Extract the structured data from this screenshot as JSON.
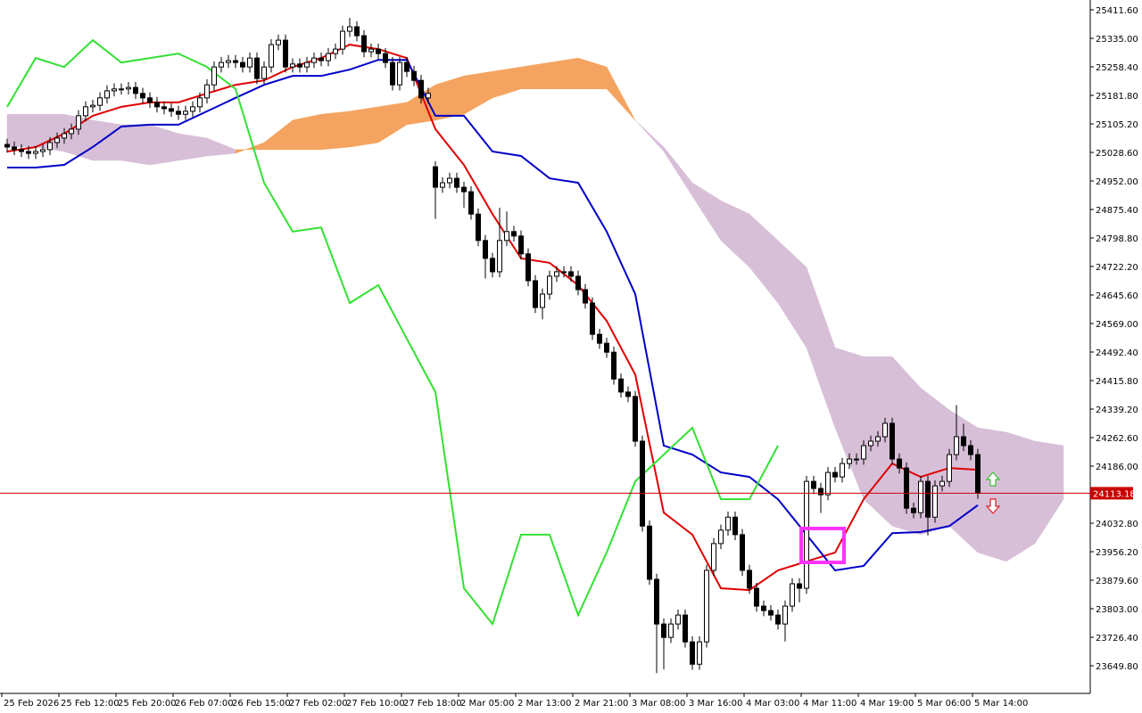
{
  "chart_data": {
    "type": "candlestick",
    "categories": [
      "25 Feb 2026",
      null,
      null,
      null,
      null,
      null,
      null,
      null,
      "25 Feb 12:00",
      null,
      null,
      null,
      null,
      null,
      null,
      null,
      "25 Feb 20:00",
      null,
      null,
      null,
      null,
      null,
      null,
      null,
      "26 Feb 07:00",
      null,
      null,
      null,
      null,
      null,
      null,
      null,
      "26 Feb 15:00",
      null,
      null,
      null,
      null,
      null,
      null,
      null,
      "27 Feb 02:00",
      null,
      null,
      null,
      null,
      null,
      null,
      null,
      "27 Feb 10:00",
      null,
      null,
      null,
      null,
      null,
      null,
      null,
      "27 Feb 18:00",
      null,
      null,
      null,
      null,
      null,
      null,
      null,
      "2 Mar 05:00",
      null,
      null,
      null,
      null,
      null,
      null,
      null,
      "2 Mar 13:00",
      null,
      null,
      null,
      null,
      null,
      null,
      null,
      "2 Mar 21:00",
      null,
      null,
      null,
      null,
      null,
      null,
      null,
      "3 Mar 08:00",
      null,
      null,
      null,
      null,
      null,
      null,
      null,
      "3 Mar 16:00",
      null,
      null,
      null,
      null,
      null,
      null,
      null,
      "4 Mar 03:00",
      null,
      null,
      null,
      null,
      null,
      null,
      null,
      "4 Mar 11:00",
      null,
      null,
      null,
      null,
      null,
      null,
      null,
      "4 Mar 19:00",
      null,
      null,
      null,
      null,
      null,
      null,
      null,
      "5 Mar 06:00",
      null,
      null,
      null,
      null,
      null,
      null,
      null,
      "5 Mar 14:00"
    ],
    "open": [
      25050,
      25043,
      25036,
      25031,
      25026,
      25031,
      25036,
      25055,
      25067,
      25079,
      25091,
      25127,
      25151,
      25155,
      25175,
      25194,
      25199,
      25199,
      25203,
      25187,
      25175,
      25163,
      25151,
      25146,
      25139,
      25131,
      25139,
      25151,
      25175,
      25210,
      25258,
      25270,
      25275,
      25270,
      25258,
      25282,
      25227,
      25258,
      25318,
      25330,
      25258,
      25266,
      25258,
      25270,
      25282,
      25275,
      25294,
      25306,
      25354,
      25366,
      25342,
      25299,
      25306,
      25294,
      25270,
      25210,
      25270,
      25246,
      25222,
      25175,
      24990,
      24935,
      24947,
      24959,
      24935,
      24923,
      24863,
      24792,
      24744,
      24708,
      24792,
      24816,
      24804,
      24756,
      24684,
      24612,
      24648,
      24696,
      24708,
      24708,
      24696,
      24660,
      24624,
      24540,
      24516,
      24492,
      24420,
      24385,
      24373,
      24253,
      24025,
      23882,
      23762,
      23726,
      23762,
      23786,
      23714,
      23654,
      23714,
      23906,
      23978,
      24014,
      24049,
      24002,
      23906,
      23858,
      23810,
      23798,
      23786,
      23762,
      23810,
      23870,
      23858,
      24145,
      24126,
      24109,
      24169,
      24157,
      24193,
      24205,
      24205,
      24241,
      24253,
      24265,
      24301,
      24205,
      24181,
      24073,
      24061,
      24145,
      24049,
      24133,
      24145,
      24217,
      24265,
      24241,
      24217
    ],
    "high": [
      25065,
      25058,
      25051,
      25046,
      25046,
      25051,
      25070,
      25082,
      25094,
      25106,
      25142,
      25166,
      25170,
      25190,
      25209,
      25214,
      25214,
      25218,
      25218,
      25202,
      25190,
      25178,
      25166,
      25161,
      25154,
      25154,
      25166,
      25190,
      25225,
      25273,
      25285,
      25290,
      25290,
      25285,
      25297,
      25297,
      25273,
      25333,
      25345,
      25345,
      25281,
      25281,
      25285,
      25297,
      25297,
      25309,
      25321,
      25369,
      25390,
      25381,
      25357,
      25321,
      25321,
      25309,
      25285,
      25285,
      25285,
      25261,
      25237,
      25202,
      25005,
      24962,
      24974,
      24974,
      24950,
      24938,
      24878,
      24807,
      24759,
      24880,
      24870,
      24831,
      24819,
      24771,
      24699,
      24663,
      24711,
      24723,
      24723,
      24723,
      24711,
      24675,
      24639,
      24555,
      24531,
      24507,
      24435,
      24400,
      24388,
      24268,
      24040,
      23897,
      23777,
      23777,
      23801,
      23801,
      23729,
      23729,
      23921,
      23993,
      24029,
      24064,
      24064,
      24017,
      23921,
      23873,
      23825,
      23813,
      23801,
      23825,
      23885,
      23885,
      24160,
      24160,
      24141,
      24184,
      24184,
      24208,
      24220,
      24220,
      24256,
      24268,
      24280,
      24316,
      24316,
      24220,
      24196,
      24088,
      24160,
      24160,
      24148,
      24160,
      24232,
      24350,
      24300,
      24256,
      24232
    ],
    "low": [
      25028,
      25021,
      25016,
      25011,
      25011,
      25016,
      25021,
      25040,
      25052,
      25064,
      25076,
      25112,
      25136,
      25140,
      25160,
      25179,
      25184,
      25184,
      25172,
      25160,
      25148,
      25136,
      25131,
      25124,
      25116,
      25116,
      25124,
      25136,
      25160,
      25195,
      25243,
      25255,
      25255,
      25243,
      25243,
      25212,
      25212,
      25243,
      25303,
      25243,
      25243,
      25243,
      25243,
      25255,
      25260,
      25260,
      25279,
      25291,
      25339,
      25327,
      25284,
      25284,
      25279,
      25255,
      25195,
      25195,
      25231,
      25207,
      25160,
      25160,
      24850,
      24920,
      24932,
      24920,
      24880,
      24848,
      24777,
      24690,
      24693,
      24693,
      24777,
      24789,
      24741,
      24669,
      24597,
      24580,
      24633,
      24681,
      24693,
      24681,
      24645,
      24609,
      24525,
      24501,
      24477,
      24405,
      24370,
      24358,
      24238,
      24010,
      23867,
      23630,
      23640,
      23711,
      23747,
      23699,
      23639,
      23639,
      23699,
      23891,
      23963,
      23999,
      23987,
      23891,
      23843,
      23795,
      23783,
      23771,
      23747,
      23715,
      23795,
      23820,
      23843,
      24111,
      24060,
      24094,
      24142,
      24142,
      24178,
      24190,
      24190,
      24226,
      24238,
      24250,
      24190,
      24166,
      24058,
      24046,
      24046,
      24000,
      24034,
      24118,
      24130,
      24202,
      24226,
      24202,
      24098
    ],
    "close": [
      25043,
      25036,
      25031,
      25026,
      25031,
      25036,
      25055,
      25067,
      25079,
      25091,
      25127,
      25151,
      25155,
      25175,
      25194,
      25199,
      25199,
      25203,
      25187,
      25175,
      25163,
      25151,
      25146,
      25139,
      25131,
      25139,
      25151,
      25175,
      25210,
      25258,
      25270,
      25275,
      25270,
      25258,
      25282,
      25227,
      25258,
      25318,
      25330,
      25258,
      25266,
      25258,
      25270,
      25282,
      25275,
      25294,
      25306,
      25354,
      25366,
      25342,
      25299,
      25306,
      25294,
      25270,
      25210,
      25270,
      25246,
      25222,
      25175,
      25187,
      24935,
      24947,
      24959,
      24935,
      24923,
      24863,
      24792,
      24744,
      24708,
      24792,
      24816,
      24804,
      24756,
      24684,
      24612,
      24648,
      24696,
      24708,
      24708,
      24696,
      24660,
      24624,
      24540,
      24516,
      24492,
      24420,
      24385,
      24373,
      24253,
      24025,
      23882,
      23762,
      23726,
      23762,
      23786,
      23714,
      23654,
      23714,
      23906,
      23978,
      24014,
      24049,
      24002,
      23906,
      23858,
      23810,
      23798,
      23786,
      23762,
      23810,
      23870,
      23858,
      24145,
      24126,
      24109,
      24169,
      24157,
      24193,
      24205,
      24205,
      24241,
      24253,
      24265,
      24301,
      24205,
      24181,
      24073,
      24061,
      24145,
      24049,
      24133,
      24145,
      24217,
      24265,
      24241,
      24217,
      24113
    ],
    "up_color": "#ffffff",
    "down_color": "#000000",
    "lines": [
      {
        "color": "#e00000",
        "values": [
          25031,
          25043,
          25079,
          25127,
          25151,
          25163,
          25163,
          25187,
          25210,
          25222,
          25258,
          25282,
          25318,
          25306,
          25282,
          25091,
          24995,
          24863,
          24744,
          24732,
          24672,
          24576,
          24432,
          24061,
          24002,
          23858,
          23853,
          23906,
          23930,
          23954,
          24097,
          24193,
          24157,
          24181,
          24176
        ]
      },
      {
        "color": "#0000c8",
        "values": [
          24988,
          24988,
          24995,
          25043,
          25098,
          25103,
          25103,
          25139,
          25175,
          25210,
          25234,
          25234,
          25251,
          25277,
          25277,
          25127,
          25127,
          25031,
          25019,
          24959,
          24947,
          24816,
          24648,
          24241,
          24217,
          24169,
          24157,
          24097,
          24002,
          23906,
          23918,
          24006,
          24009,
          24025,
          24081
        ]
      },
      {
        "color": "#33e033",
        "values": [
          25151,
          25282,
          25258,
          25330,
          25270,
          25282,
          25294,
          25258,
          25199,
          24947,
          24816,
          24827,
          24624,
          24672,
          24528,
          24385,
          23858,
          23762,
          24002,
          24002,
          23786,
          23954,
          24145,
          24217,
          24289,
          24097,
          24097,
          24241
        ]
      }
    ],
    "cloud": {
      "span_a": [
        25043,
        25043,
        25031,
        25007,
        25007,
        24995,
        25007,
        25019,
        25026,
        25055,
        25115,
        25131,
        25139,
        25151,
        25163,
        25210,
        25234,
        25246,
        25258,
        25270,
        25282,
        25258,
        25115,
        25031,
        24911,
        24792,
        24720,
        24624,
        24504,
        24289,
        24097,
        24025,
        24002,
        24025,
        23954,
        23930,
        23978,
        24097
      ],
      "span_b": [
        25131,
        25131,
        25131,
        25115,
        25103,
        25103,
        25079,
        25067,
        25036,
        25036,
        25036,
        25036,
        25043,
        25055,
        25103,
        25115,
        25131,
        25175,
        25199,
        25199,
        25199,
        25199,
        25115,
        25043,
        24947,
        24899,
        24863,
        24792,
        24720,
        24504,
        24480,
        24480,
        24396,
        24337,
        24289,
        24277,
        24253,
        24241
      ],
      "bull_color": "#f4a460",
      "bear_color": "#d8bfd8"
    },
    "current_price": 24113.18,
    "current_price_color": "#c80000",
    "ylim": [
      23575.6,
      25437.9
    ],
    "yticks": [
      {
        "value": 25411.6,
        "label": "25411.60"
      },
      {
        "value": 25335,
        "label": "25335.00"
      },
      {
        "value": 25258.4,
        "label": "25258.40"
      },
      {
        "value": 25181.8,
        "label": "25181.80"
      },
      {
        "value": 25105.2,
        "label": "25105.20"
      },
      {
        "value": 25028.6,
        "label": "25028.60"
      },
      {
        "value": 24952,
        "label": "24952.00"
      },
      {
        "value": 24875.4,
        "label": "24875.40"
      },
      {
        "value": 24798.8,
        "label": "24798.80"
      },
      {
        "value": 24722.2,
        "label": "24722.20"
      },
      {
        "value": 24645.6,
        "label": "24645.60"
      },
      {
        "value": 24569,
        "label": "24569.00"
      },
      {
        "value": 24492.4,
        "label": "24492.40"
      },
      {
        "value": 24415.8,
        "label": "24415.80"
      },
      {
        "value": 24339.2,
        "label": "24339.20"
      },
      {
        "value": 24262.6,
        "label": "24262.60"
      },
      {
        "value": 24186,
        "label": "24186.00"
      },
      {
        "value": 24032.8,
        "label": "24032.80"
      },
      {
        "value": 23956.2,
        "label": "23956.20"
      },
      {
        "value": 23879.6,
        "label": "23879.60"
      },
      {
        "value": 23803,
        "label": "23803.00"
      },
      {
        "value": 23726.4,
        "label": "23726.40"
      },
      {
        "value": 23649.8,
        "label": "23649.80"
      }
    ],
    "grid": false
  }
}
